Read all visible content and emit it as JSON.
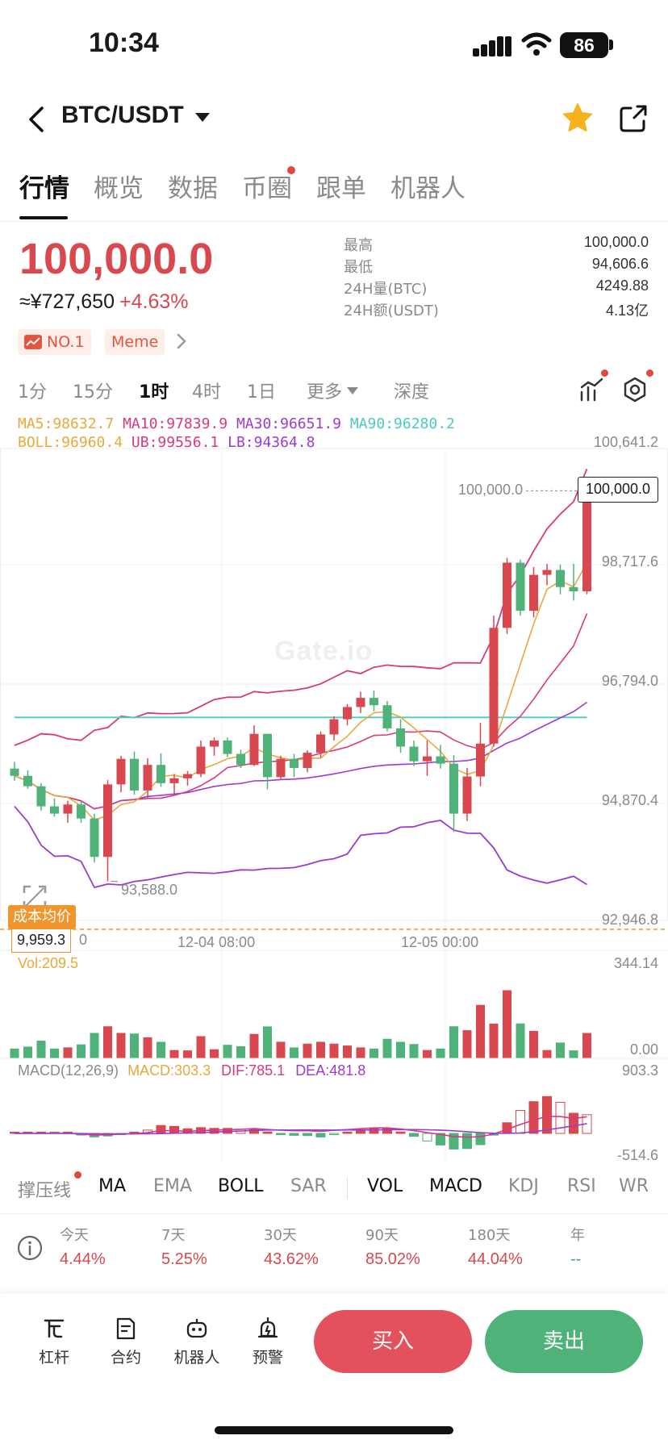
{
  "status": {
    "time": "10:34",
    "battery": "86"
  },
  "header": {
    "pair": "BTC/USDT"
  },
  "tabs": [
    {
      "label": "行情",
      "active": true
    },
    {
      "label": "概览"
    },
    {
      "label": "数据"
    },
    {
      "label": "币圈",
      "dot": true
    },
    {
      "label": "跟单"
    },
    {
      "label": "机器人"
    }
  ],
  "price": {
    "last": "100,000.0",
    "cny": "≈¥727,650",
    "change": "+4.63%",
    "badges": [
      "NO.1",
      "Meme"
    ]
  },
  "stats": [
    {
      "label": "最高",
      "value": "100,000.0"
    },
    {
      "label": "最低",
      "value": "94,606.6"
    },
    {
      "label": "24H量(BTC)",
      "value": "4249.88"
    },
    {
      "label": "24H额(USDT)",
      "value": "4.13亿"
    }
  ],
  "intervals": [
    "1分",
    "15分",
    "1时",
    "4时",
    "1日",
    "更多",
    "深度"
  ],
  "active_interval": "1时",
  "indicators_main": {
    "ma5": "MA5:98632.7",
    "ma10": "MA10:97839.9",
    "ma30": "MA30:96651.9",
    "ma90": "MA90:96280.2",
    "boll": "BOLL:96960.4",
    "ub": "UB:99556.1",
    "lb": "LB:94364.8"
  },
  "price_axis": [
    "100,641.2",
    "98,717.6",
    "96,794.0",
    "94,870.4",
    "92,946.8"
  ],
  "time_axis": [
    "12-04 08:00",
    "12-05 00:00"
  ],
  "markers": {
    "high_label": "100,000.0",
    "current_box": "100,000.0",
    "low_label": "93,588.0",
    "cost_tag": "成本均价",
    "cost_value": "9,959.3",
    "cost_trail": "0"
  },
  "watermark": "Gate.io",
  "volume": {
    "label": "Vol:209.5",
    "max": "344.14",
    "min": "0.00"
  },
  "macd": {
    "title": "MACD(12,26,9)",
    "macd": "MACD:303.3",
    "dif": "DIF:785.1",
    "dea": "DEA:481.8",
    "max": "903.3",
    "min": "-514.6"
  },
  "indicator_tabs": [
    "撑压线",
    "MA",
    "EMA",
    "BOLL",
    "SAR",
    "VOL",
    "MACD",
    "KDJ",
    "RSI",
    "WR"
  ],
  "performance": [
    {
      "label": "今天",
      "value": "4.44%"
    },
    {
      "label": "7天",
      "value": "5.25%"
    },
    {
      "label": "30天",
      "value": "43.62%"
    },
    {
      "label": "90天",
      "value": "85.02%"
    },
    {
      "label": "180天",
      "value": "44.04%"
    },
    {
      "label": "年",
      "value": "--"
    }
  ],
  "bottom_nav": [
    "杠杆",
    "合约",
    "机器人",
    "预警"
  ],
  "buy": "买入",
  "sell": "卖出",
  "colors": {
    "up": "#d9474f",
    "down": "#4fb278",
    "ma5": "#e8a93a",
    "ma10": "#d8397e",
    "ma30": "#9b3ccf",
    "ma90": "#4cc9c0"
  },
  "chart_data": {
    "type": "candlestick",
    "ylim": [
      92946.8,
      100641.2
    ],
    "candles": [
      [
        95440,
        95550,
        95240,
        95320
      ],
      [
        95320,
        95410,
        95110,
        95150
      ],
      [
        95150,
        95200,
        94750,
        94820
      ],
      [
        94820,
        94950,
        94650,
        94700
      ],
      [
        94700,
        94910,
        94550,
        94850
      ],
      [
        94850,
        94900,
        94550,
        94620
      ],
      [
        94620,
        94700,
        93900,
        93990
      ],
      [
        93990,
        95250,
        93588,
        95180
      ],
      [
        95180,
        95650,
        95050,
        95600
      ],
      [
        95600,
        95720,
        95010,
        95080
      ],
      [
        95080,
        95610,
        94950,
        95500
      ],
      [
        95500,
        95690,
        95140,
        95200
      ],
      [
        95200,
        95350,
        95030,
        95280
      ],
      [
        95280,
        95400,
        95160,
        95350
      ],
      [
        95350,
        95900,
        95300,
        95800
      ],
      [
        95800,
        95950,
        95650,
        95900
      ],
      [
        95900,
        95950,
        95630,
        95680
      ],
      [
        95680,
        95750,
        95450,
        95500
      ],
      [
        95500,
        96150,
        95480,
        96010
      ],
      [
        96010,
        96010,
        95100,
        95300
      ],
      [
        95300,
        95650,
        95250,
        95600
      ],
      [
        95600,
        95680,
        95300,
        95450
      ],
      [
        95450,
        95740,
        95380,
        95700
      ],
      [
        95700,
        96050,
        95620,
        96000
      ],
      [
        96000,
        96300,
        95900,
        96250
      ],
      [
        96250,
        96500,
        96150,
        96450
      ],
      [
        96450,
        96700,
        96350,
        96600
      ],
      [
        96600,
        96720,
        96380,
        96480
      ],
      [
        96480,
        96550,
        96050,
        96100
      ],
      [
        96100,
        96250,
        95700,
        95800
      ],
      [
        95800,
        95900,
        95480,
        95560
      ],
      [
        95560,
        95900,
        95320,
        95640
      ],
      [
        95640,
        95830,
        95440,
        95520
      ],
      [
        95520,
        95660,
        94400,
        94700
      ],
      [
        94700,
        95450,
        94580,
        95310
      ],
      [
        95310,
        96190,
        95150,
        95850
      ],
      [
        95850,
        97950,
        95800,
        97750
      ],
      [
        97750,
        98900,
        97650,
        98820
      ],
      [
        98820,
        98870,
        97950,
        98030
      ],
      [
        98030,
        98750,
        97920,
        98620
      ],
      [
        98620,
        98800,
        98450,
        98700
      ],
      [
        98700,
        98790,
        98300,
        98420
      ],
      [
        98420,
        98800,
        98200,
        98350
      ],
      [
        98350,
        100000,
        98300,
        100000
      ]
    ]
  }
}
